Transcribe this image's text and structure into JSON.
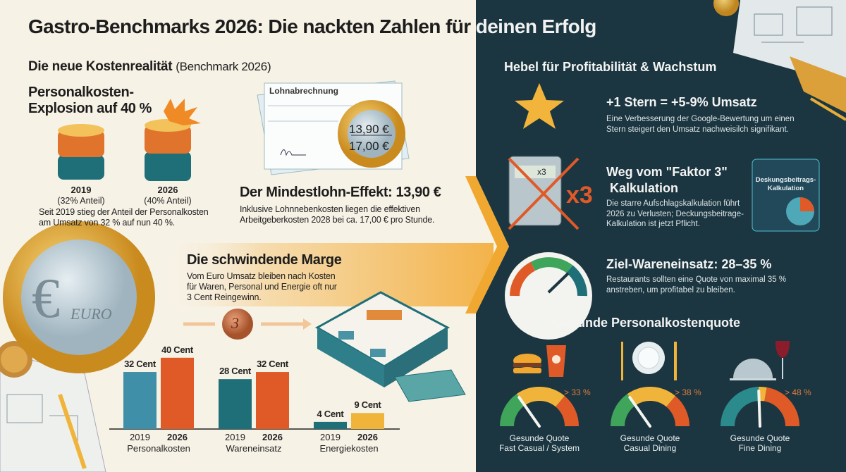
{
  "title": "Gastro-Benchmarks 2026: Die nackten Zahlen für deinen Erfolg",
  "left": {
    "section_title": "Die neue Kostenrealität",
    "section_subtitle": "(Benchmark 2026)",
    "explosion": {
      "heading_line1": "Personalkosten-",
      "heading_line2": "Explosion auf 40 %",
      "stacks": [
        {
          "year": "2019",
          "share": "(32% Anteil)"
        },
        {
          "year": "2026",
          "share": "(40% Anteil)"
        }
      ],
      "text_line1": "Seit 2019 stieg der Anteil der Personalkosten",
      "text_line2": "am Umsatz von 32 % auf nun 40 %."
    },
    "mindestlohn": {
      "payslip_title": "Lohnabrechnung",
      "coin_top": "13,90 €",
      "coin_bottom": "17,00 €",
      "heading": "Der Mindestlohn-Effekt: 13,90 €",
      "text_line1": "Inklusive Lohnnebenkosten liegen die effektiven",
      "text_line2": "Arbeitgeberkosten 2028 bei ca. 17,00 € pro Stunde."
    },
    "marge": {
      "heading": "Die schwindende Marge",
      "text_line1": "Vom Euro Umsatz bleiben nach Kosten",
      "text_line2": "für Waren, Personal und Energie oft nur",
      "text_line3": "3 Cent Reingewinn.",
      "euro_coin_text": "EURO",
      "cent_coin_value": "3"
    }
  },
  "chart_data": {
    "type": "bar",
    "categories": [
      "Personalkosten",
      "Wareneinsatz",
      "Energiekosten"
    ],
    "series": [
      {
        "name": "2019",
        "values": [
          32,
          28,
          4
        ],
        "labels": [
          "32 Cent",
          "28 Cent",
          "4 Cent"
        ],
        "colors": [
          "#3f8fa8",
          "#1f6f78",
          "#1f6f78"
        ]
      },
      {
        "name": "2026",
        "values": [
          40,
          32,
          9
        ],
        "labels": [
          "40 Cent",
          "32 Cent",
          "9 Cent"
        ],
        "colors": [
          "#e05a28",
          "#e05a28",
          "#f0b43a"
        ]
      }
    ],
    "unit": "Cent",
    "xlabel": "",
    "ylabel": "",
    "ylim": [
      0,
      45
    ],
    "grid": false,
    "legend": "none"
  },
  "right": {
    "section_title": "Hebel für Profitabilität & Wachstum",
    "items": [
      {
        "heading": "+1 Stern = +5-9% Umsatz",
        "text_line1": "Eine Verbesserung der Google-Bewertung um einen",
        "text_line2": "Stern steigert den Umsatz nachweisilch signifikant."
      },
      {
        "heading_line1": "Weg vom \"Faktor 3\"",
        "heading_line2": " Kalkulation",
        "text_line1": "Die starre Aufschlagskalkulation führt",
        "text_line2": "2026 zu Verlusten; Deckungsbeitrage-",
        "text_line3": "Kalkulation ist jetzt Pflicht.",
        "calc_display": "x3",
        "x3_label": "x3",
        "screen_line1": "Deskungsbeitrags-",
        "screen_line2": "Kalkulation"
      },
      {
        "heading": "Ziel-Wareneinsatz: 28–35 %",
        "text_line1": "Restaurants sollten eine Quote von maximal 35 %",
        "text_line2": "anstreben, um profitabel zu bleiben."
      }
    ],
    "quote_title": "Gesunde Personalkostenquote",
    "quotes": [
      {
        "threshold": "> 33 %",
        "label_line1": "Gesunde Quote",
        "label_line2": "Fast Casual / System",
        "icon": "burger-drink-icon"
      },
      {
        "threshold": "> 38 %",
        "label_line1": "Gesunde Quote",
        "label_line2": "Casual Dining",
        "icon": "plate-cutlery-icon"
      },
      {
        "threshold": "> 48 %",
        "label_line1": "Gesunde Quote",
        "label_line2": "Fine Dining",
        "icon": "cloche-wine-icon"
      }
    ]
  },
  "colors": {
    "cream": "#f7f2e6",
    "dark": "#1b3640",
    "orange": "#e05a28",
    "teal": "#1f6f78",
    "gold": "#f0b43a",
    "green": "#3fa55a"
  }
}
